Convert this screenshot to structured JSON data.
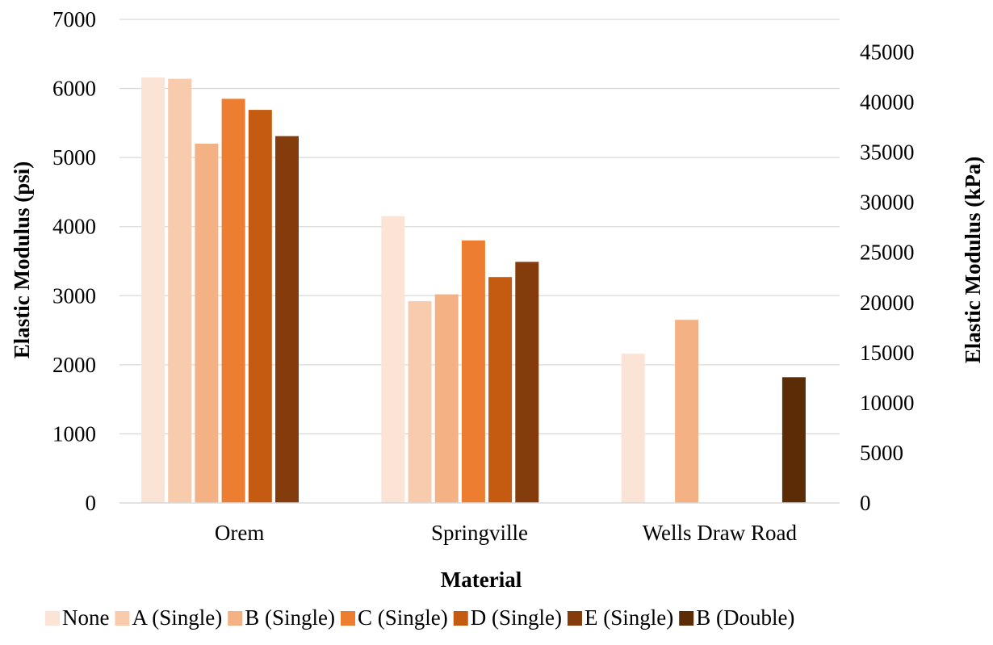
{
  "chart_data": {
    "type": "bar",
    "title": "",
    "xlabel": "Material",
    "ylabel": "Elastic Modulus (psi)",
    "y2label": "Elastic Modulus (kPa)",
    "categories": [
      "Orem",
      "Springville",
      "Wells Draw Road"
    ],
    "ylim": [
      0,
      7000
    ],
    "yticks": [
      0,
      1000,
      2000,
      3000,
      4000,
      5000,
      6000,
      7000
    ],
    "y2lim": [
      0,
      48263
    ],
    "y2ticks": [
      0,
      5000,
      10000,
      15000,
      20000,
      25000,
      30000,
      35000,
      40000,
      45000
    ],
    "grid": true,
    "legend_position": "bottom",
    "series": [
      {
        "name": "None",
        "color": "#FBE3D5",
        "values": [
          6160,
          4150,
          2160
        ]
      },
      {
        "name": "A (Single)",
        "color": "#F8CBAD",
        "values": [
          6140,
          2920,
          null
        ]
      },
      {
        "name": "B (Single)",
        "color": "#F4B183",
        "values": [
          5200,
          3020,
          2650
        ]
      },
      {
        "name": "C (Single)",
        "color": "#ED7D31",
        "values": [
          5850,
          3800,
          null
        ]
      },
      {
        "name": "D (Single)",
        "color": "#C55A11",
        "values": [
          5690,
          3270,
          null
        ]
      },
      {
        "name": "E (Single)",
        "color": "#843C0C",
        "values": [
          5310,
          3490,
          null
        ]
      },
      {
        "name": "B (Double)",
        "color": "#5B2C06",
        "values": [
          null,
          null,
          1820
        ]
      }
    ]
  }
}
